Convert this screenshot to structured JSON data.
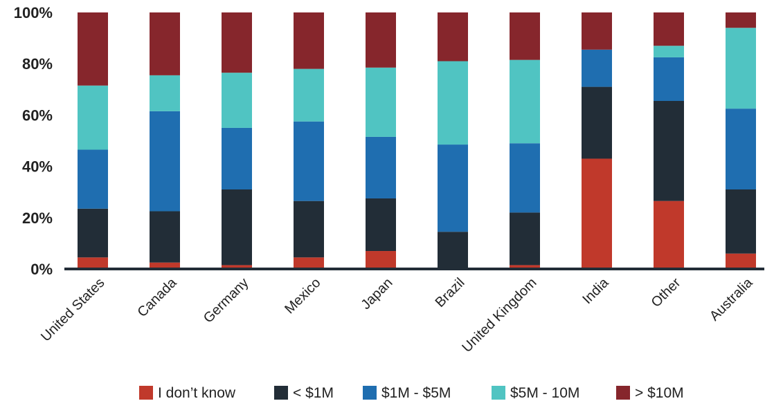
{
  "chart_data": {
    "type": "bar",
    "stacked": true,
    "percent": true,
    "categories": [
      "United States",
      "Canada",
      "Germany",
      "Mexico",
      "Japan",
      "Brazil",
      "United Kingdom",
      "India",
      "Other",
      "Australia"
    ],
    "series": [
      {
        "name": "I don’t know",
        "color": "#c0392b",
        "values": [
          4.5,
          2.5,
          1.5,
          4.5,
          7,
          0.5,
          1.5,
          43,
          26.5,
          6
        ]
      },
      {
        "name": "< $1M",
        "color": "#222d37",
        "values": [
          19,
          20,
          29.5,
          22,
          20.5,
          14,
          20.5,
          28,
          39,
          25
        ]
      },
      {
        "name": "$1M - $5M",
        "color": "#1f6eb0",
        "values": [
          23,
          39,
          24,
          31,
          24,
          34,
          27,
          14.5,
          17,
          31.5
        ]
      },
      {
        "name": "$5M - 10M",
        "color": "#50c4c2",
        "values": [
          25,
          14,
          21.5,
          20.5,
          27,
          32.5,
          32.5,
          0,
          4.5,
          31.5
        ]
      },
      {
        "name": "> $10M",
        "color": "#86262c",
        "values": [
          28.5,
          24.5,
          23.5,
          22,
          21.5,
          19,
          18.5,
          14.5,
          13,
          6
        ]
      }
    ],
    "yticks": [
      "0%",
      "20%",
      "40%",
      "60%",
      "80%",
      "100%"
    ],
    "ylim": [
      0,
      100
    ],
    "legend_position": "bottom"
  }
}
